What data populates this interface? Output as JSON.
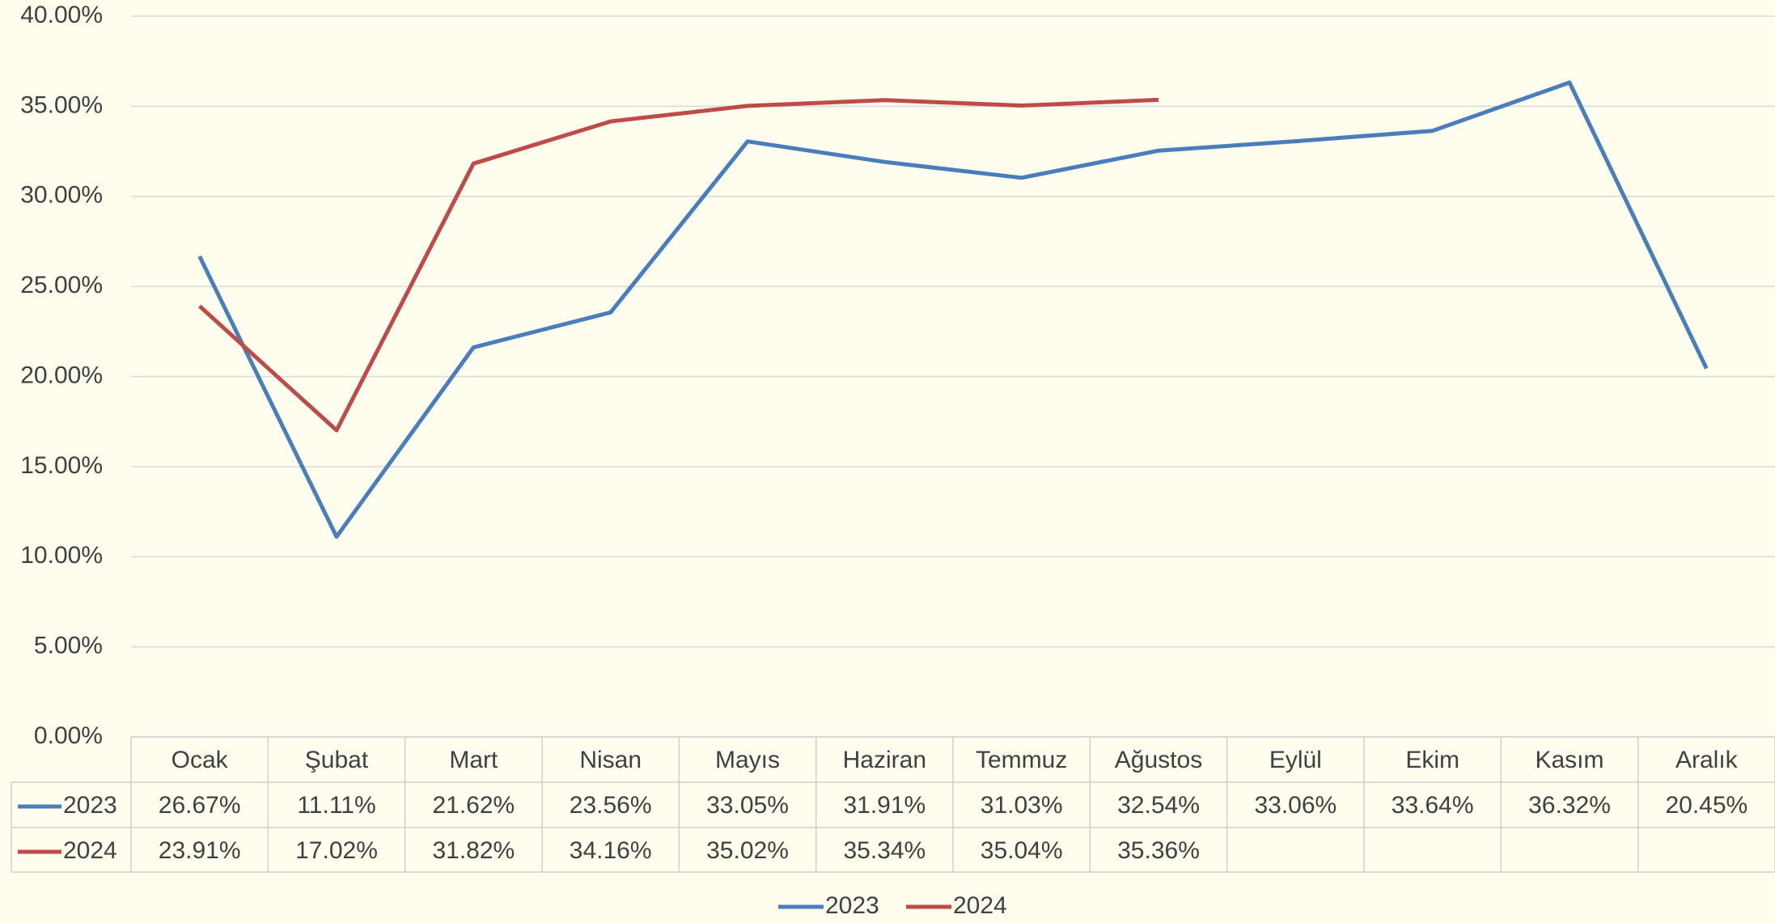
{
  "chart_data": {
    "type": "line",
    "categories": [
      "Ocak",
      "Şubat",
      "Mart",
      "Nisan",
      "Mayıs",
      "Haziran",
      "Temmuz",
      "Ağustos",
      "Eylül",
      "Ekim",
      "Kasım",
      "Aralık"
    ],
    "series": [
      {
        "name": "2023",
        "color": "#4a7ebb",
        "values": [
          26.67,
          11.11,
          21.62,
          23.56,
          33.05,
          31.91,
          31.03,
          32.54,
          33.06,
          33.64,
          36.32,
          20.45
        ],
        "value_labels": [
          "26.67%",
          "11.11%",
          "21.62%",
          "23.56%",
          "33.05%",
          "31.91%",
          "31.03%",
          "32.54%",
          "33.06%",
          "33.64%",
          "36.32%",
          "20.45%"
        ]
      },
      {
        "name": "2024",
        "color": "#be4b48",
        "values": [
          23.91,
          17.02,
          31.82,
          34.16,
          35.02,
          35.34,
          35.04,
          35.36,
          null,
          null,
          null,
          null
        ],
        "value_labels": [
          "23.91%",
          "17.02%",
          "31.82%",
          "34.16%",
          "35.02%",
          "35.34%",
          "35.04%",
          "35.36%",
          null,
          null,
          null,
          null
        ]
      }
    ],
    "ylim": [
      0,
      40
    ],
    "yticks": [
      {
        "value": 0,
        "label": "0.00%"
      },
      {
        "value": 5,
        "label": "5.00%"
      },
      {
        "value": 10,
        "label": "10.00%"
      },
      {
        "value": 15,
        "label": "15.00%"
      },
      {
        "value": 20,
        "label": "20.00%"
      },
      {
        "value": 25,
        "label": "25.00%"
      },
      {
        "value": 30,
        "label": "30.00%"
      },
      {
        "value": 35,
        "label": "35.00%"
      },
      {
        "value": 40,
        "label": "40.00%"
      }
    ],
    "grid": true,
    "legend": "bottom"
  }
}
